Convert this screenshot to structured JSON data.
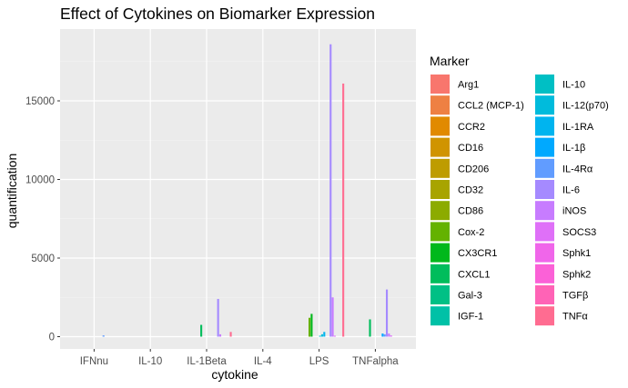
{
  "chart_data": {
    "type": "bar",
    "title": "Effect of Cytokines on Biomarker Expression",
    "xlabel": "cytokine",
    "ylabel": "quantification",
    "categories": [
      "IFNnu",
      "IL-10",
      "IL-1Beta",
      "IL-4",
      "LPS",
      "TNFalpha"
    ],
    "ylim": [
      0,
      19000
    ],
    "yticks": [
      0,
      5000,
      10000,
      15000
    ],
    "ytick_labels": [
      "0",
      "5000",
      "10000",
      "15000"
    ],
    "grid": true,
    "legend": {
      "title": "Marker",
      "position": "right",
      "columns": 2,
      "entries": [
        {
          "name": "Arg1",
          "color": "#F8766D"
        },
        {
          "name": "CCL2 (MCP-1)",
          "color": "#EE8043"
        },
        {
          "name": "CCR2",
          "color": "#E18A00"
        },
        {
          "name": "CD16",
          "color": "#D09400"
        },
        {
          "name": "CD206",
          "color": "#BE9C00"
        },
        {
          "name": "CD32",
          "color": "#A8A400"
        },
        {
          "name": "CD86",
          "color": "#8CAB00"
        },
        {
          "name": "Cox-2",
          "color": "#64B200"
        },
        {
          "name": "CX3CR1",
          "color": "#00B81B"
        },
        {
          "name": "CXCL1",
          "color": "#00BD5C"
        },
        {
          "name": "Gal-3",
          "color": "#00C085"
        },
        {
          "name": "IGF-1",
          "color": "#00C1A7"
        },
        {
          "name": "IL-10",
          "color": "#00BFC4"
        },
        {
          "name": "IL-12(p70)",
          "color": "#00BBDC"
        },
        {
          "name": "IL-1RA",
          "color": "#00B4EF"
        },
        {
          "name": "IL-1β",
          "color": "#00A9FF"
        },
        {
          "name": "IL-4Rα",
          "color": "#619CFF"
        },
        {
          "name": "IL-6",
          "color": "#A58AFF"
        },
        {
          "name": "iNOS",
          "color": "#C77CFF"
        },
        {
          "name": "SOCS3",
          "color": "#DF70F8"
        },
        {
          "name": "Sphk1",
          "color": "#F066EA"
        },
        {
          "name": "Sphk2",
          "color": "#FB61D7"
        },
        {
          "name": "TGFβ",
          "color": "#FF63B6"
        },
        {
          "name": "TNFα",
          "color": "#FF6C91"
        }
      ]
    },
    "series": [
      {
        "name": "Arg1",
        "values": [
          0,
          0,
          0,
          0,
          0,
          0
        ]
      },
      {
        "name": "CCL2 (MCP-1)",
        "values": [
          0,
          0,
          0,
          0,
          0,
          0
        ]
      },
      {
        "name": "CCR2",
        "values": [
          0,
          0,
          0,
          0,
          0,
          0
        ]
      },
      {
        "name": "CD16",
        "values": [
          0,
          0,
          0,
          0,
          0,
          0
        ]
      },
      {
        "name": "CD206",
        "values": [
          0,
          0,
          0,
          0,
          0,
          0
        ]
      },
      {
        "name": "CD32",
        "values": [
          0,
          0,
          0,
          0,
          0,
          0
        ]
      },
      {
        "name": "CD86",
        "values": [
          0,
          0,
          0,
          0,
          0,
          0
        ]
      },
      {
        "name": "Cox-2",
        "values": [
          0,
          0,
          0,
          0,
          1200,
          0
        ]
      },
      {
        "name": "CX3CR1",
        "values": [
          0,
          0,
          0,
          0,
          1450,
          0
        ]
      },
      {
        "name": "CXCL1",
        "values": [
          0,
          0,
          750,
          0,
          0,
          1100
        ]
      },
      {
        "name": "Gal-3",
        "values": [
          0,
          0,
          0,
          0,
          0,
          0
        ]
      },
      {
        "name": "IGF-1",
        "values": [
          0,
          0,
          0,
          0,
          0,
          0
        ]
      },
      {
        "name": "IL-10",
        "values": [
          0,
          0,
          0,
          0,
          60,
          0
        ]
      },
      {
        "name": "IL-12(p70)",
        "values": [
          0,
          0,
          0,
          0,
          150,
          0
        ]
      },
      {
        "name": "IL-1RA",
        "values": [
          0,
          0,
          0,
          0,
          300,
          0
        ]
      },
      {
        "name": "IL-1β",
        "values": [
          0,
          0,
          0,
          0,
          0,
          200
        ]
      },
      {
        "name": "IL-4Rα",
        "values": [
          80,
          0,
          0,
          0,
          0,
          150
        ]
      },
      {
        "name": "IL-6",
        "values": [
          0,
          0,
          2400,
          0,
          18600,
          3000
        ]
      },
      {
        "name": "iNOS",
        "values": [
          0,
          0,
          150,
          0,
          2500,
          200
        ]
      },
      {
        "name": "SOCS3",
        "values": [
          0,
          0,
          0,
          0,
          60,
          80
        ]
      },
      {
        "name": "Sphk1",
        "values": [
          0,
          0,
          0,
          0,
          0,
          0
        ]
      },
      {
        "name": "Sphk2",
        "values": [
          0,
          0,
          0,
          0,
          0,
          0
        ]
      },
      {
        "name": "TGFβ",
        "values": [
          0,
          0,
          0,
          0,
          0,
          0
        ]
      },
      {
        "name": "TNFα",
        "values": [
          0,
          0,
          300,
          0,
          16100,
          0
        ]
      }
    ]
  }
}
